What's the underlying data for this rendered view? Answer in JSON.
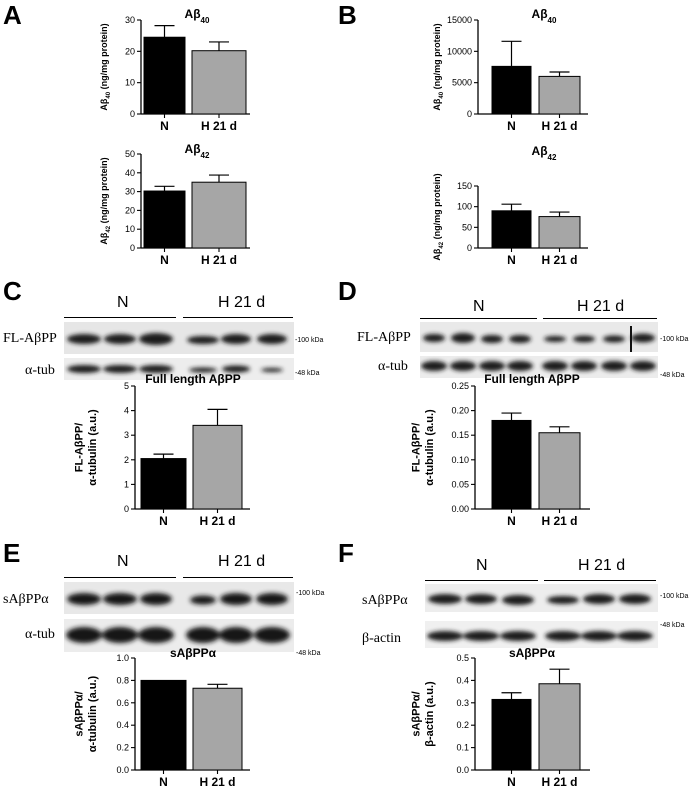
{
  "panels": [
    {
      "id": "A",
      "label": "A"
    },
    {
      "id": "B",
      "label": "B"
    },
    {
      "id": "C",
      "label": "C"
    },
    {
      "id": "D",
      "label": "D"
    },
    {
      "id": "E",
      "label": "E"
    },
    {
      "id": "F",
      "label": "F"
    }
  ],
  "colors": {
    "N": "#000000",
    "H21d": "#a6a6a6"
  },
  "blots": {
    "C": {
      "group1": "N",
      "group2": "H 21 d",
      "row1_label": "FL-AβPP",
      "row2_label": "α-tub",
      "marker1": "-100 kDa",
      "marker2": "-48 kDa"
    },
    "D": {
      "group1": "N",
      "group2": "H 21 d",
      "row1_label": "FL-AβPP",
      "row2_label": "α-tub",
      "marker1": "-100 kDa",
      "marker2": "-48 kDa"
    },
    "E": {
      "group1": "N",
      "group2": "H 21 d",
      "row1_label": "sAβPPα",
      "row2_label": "α-tub",
      "marker1": "-100 kDa",
      "marker2": "-48 kDa"
    },
    "F": {
      "group1": "N",
      "group2": "H 21 d",
      "row1_label": "sAβPPα",
      "row2_label": "β-actin",
      "marker1": "-100 kDa",
      "marker2": "-48 kDa"
    }
  },
  "chart_data": [
    {
      "panel": "A",
      "type": "bar",
      "title": "Aβ40",
      "ylabel": "Aβ40 (ng/mg protein)",
      "categories": [
        "N",
        "H 21 d"
      ],
      "values": [
        24.5,
        20.2
      ],
      "errors": [
        3.7,
        2.8
      ],
      "ylim": [
        0,
        30
      ],
      "yticks": [
        0,
        10,
        20,
        30
      ]
    },
    {
      "panel": "A",
      "type": "bar",
      "title": "Aβ42",
      "ylabel": "Aβ42 (ng/mg protein)",
      "categories": [
        "N",
        "H 21 d"
      ],
      "values": [
        30.3,
        35.0
      ],
      "errors": [
        2.5,
        3.8
      ],
      "ylim": [
        0,
        50
      ],
      "yticks": [
        0,
        10,
        20,
        30,
        40,
        50
      ]
    },
    {
      "panel": "B",
      "type": "bar",
      "title": "Aβ40",
      "ylabel": "Aβ40 (ng/mg protein)",
      "categories": [
        "N",
        "H 21 d"
      ],
      "values": [
        7600,
        6000
      ],
      "errors": [
        4000,
        700
      ],
      "ylim": [
        0,
        15000
      ],
      "yticks": [
        0,
        5000,
        10000,
        15000
      ]
    },
    {
      "panel": "B",
      "type": "bar",
      "title": "Aβ42",
      "ylabel": "Aβ42 (ng/mg protein)",
      "categories": [
        "N",
        "H 21 d"
      ],
      "values": [
        90,
        76
      ],
      "errors": [
        16,
        11
      ],
      "ylim": [
        0,
        150
      ],
      "yticks": [
        0,
        50,
        100,
        150
      ]
    },
    {
      "panel": "C",
      "type": "bar",
      "title": "Full length AβPP",
      "ylabel": "FL-AβPP/ α-tubulin (a.u.)",
      "categories": [
        "N",
        "H 21 d"
      ],
      "values": [
        2.05,
        3.4
      ],
      "errors": [
        0.18,
        0.65
      ],
      "ylim": [
        0,
        5
      ],
      "yticks": [
        0,
        1,
        2,
        3,
        4,
        5
      ]
    },
    {
      "panel": "D",
      "type": "bar",
      "title": "Full length AβPP",
      "ylabel": "FL-AβPP/ α-tubulin (a.u.)",
      "categories": [
        "N",
        "H 21 d"
      ],
      "values": [
        0.18,
        0.155
      ],
      "errors": [
        0.015,
        0.012
      ],
      "ylim": [
        0,
        0.25
      ],
      "yticks": [
        0,
        0.05,
        0.1,
        0.15,
        0.2,
        0.25
      ],
      "tick_decimals": 2
    },
    {
      "panel": "E",
      "type": "bar",
      "title": "sAβPPα",
      "ylabel": "sAβPPα/ α-tubulin (a.u.)",
      "categories": [
        "N",
        "H 21 d"
      ],
      "values": [
        0.8,
        0.73
      ],
      "errors": [
        0.0,
        0.035
      ],
      "ylim": [
        0,
        1.0
      ],
      "yticks": [
        0,
        0.2,
        0.4,
        0.6,
        0.8,
        1.0
      ],
      "tick_decimals": 1
    },
    {
      "panel": "F",
      "type": "bar",
      "title": "sAβPPα",
      "ylabel": "sAβPPα/ β-actin (a.u.)",
      "categories": [
        "N",
        "H 21 d"
      ],
      "values": [
        0.315,
        0.385
      ],
      "errors": [
        0.03,
        0.065
      ],
      "ylim": [
        0,
        0.5
      ],
      "yticks": [
        0,
        0.1,
        0.2,
        0.3,
        0.4,
        0.5
      ],
      "tick_decimals": 1
    }
  ]
}
